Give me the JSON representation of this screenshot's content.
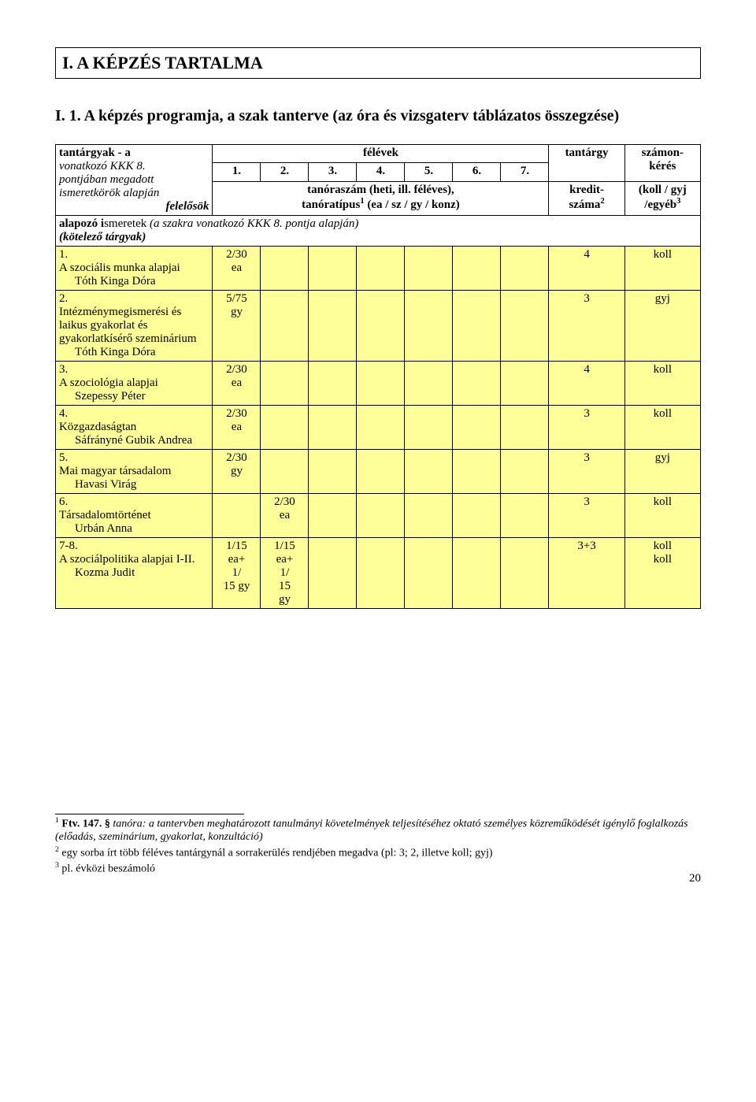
{
  "section_title": "I. A KÉPZÉS TARTALMA",
  "subsection_title": "I. 1. A képzés programja, a szak tanterve (az óra és vizsgaterv táblázatos összegzése)",
  "header": {
    "subjects_label_line1": "tantárgyak - a",
    "subjects_label_line2": "vonatkozó KKK 8.",
    "subjects_label_line3": "pontjában megadott",
    "subjects_label_line4": "ismeretkörök alapján",
    "subjects_label_line5": "felelősök",
    "semesters_label": "félévek",
    "sem_cols": [
      "1.",
      "2.",
      "3.",
      "4.",
      "5.",
      "6.",
      "7."
    ],
    "tanoraszam_line": "tanóraszám (heti, ill. féléves),",
    "tanoratipus_line": "tanóratípus",
    "tanoratipus_sup": "1",
    "tanoratipus_tail": " (ea / sz / gy / konz)",
    "tantargy_label": "tantárgy",
    "kredit_line1": "kredit-",
    "kredit_line2": "száma",
    "kredit_sup": "2",
    "szamon_line1": "számon-",
    "szamon_line2": "kérés",
    "koll_line1": "(koll / gyj",
    "koll_line2": "/egyéb",
    "koll_sup": "3"
  },
  "group_header_line1": "alapozó ismeretek (a szakra vonatkozó KKK 8. pontja alapján)",
  "group_header_line2": "(kötelező tárgyak)",
  "rows": [
    {
      "num": "1.",
      "title": "A szociális munka alapjai",
      "person": "Tóth Kinga Dóra",
      "cells": [
        "2/30\nea",
        "",
        "",
        "",
        "",
        "",
        ""
      ],
      "credit": "4",
      "exam": "koll"
    },
    {
      "num": "2.",
      "title": "Intézménymegismerési és laikus gyakorlat és gyakorlatkísérő szeminárium",
      "person": "Tóth Kinga Dóra",
      "cells": [
        "5/75\ngy",
        "",
        "",
        "",
        "",
        "",
        ""
      ],
      "credit": "3",
      "exam": "gyj"
    },
    {
      "num": "3.",
      "title": "A szociológia alapjai",
      "person": "Szepessy Péter",
      "cells": [
        "2/30\nea",
        "",
        "",
        "",
        "",
        "",
        ""
      ],
      "credit": "4",
      "exam": "koll"
    },
    {
      "num": "4.",
      "title": "Közgazdaságtan",
      "person": "Sáfrányné Gubik Andrea",
      "cells": [
        "2/30\nea",
        "",
        "",
        "",
        "",
        "",
        ""
      ],
      "credit": "3",
      "exam": "koll"
    },
    {
      "num": "5.",
      "title": "Mai magyar társadalom",
      "person": "Havasi Virág",
      "cells": [
        "2/30\ngy",
        "",
        "",
        "",
        "",
        "",
        ""
      ],
      "credit": "3",
      "exam": "gyj"
    },
    {
      "num": "6.",
      "title": "Társadalomtörténet",
      "person": "Urbán Anna",
      "cells": [
        "",
        "2/30\nea",
        "",
        "",
        "",
        "",
        ""
      ],
      "credit": "3",
      "exam": "koll"
    },
    {
      "num": "7-8.",
      "title": "A szociálpolitika alapjai I-II.",
      "person": "Kozma Judit",
      "cells": [
        "1/15\nea+\n1/\n15 gy",
        "1/15\nea+\n1/\n15\ngy",
        "",
        "",
        "",
        "",
        ""
      ],
      "credit": "3+3",
      "exam": "koll\nkoll"
    }
  ],
  "footnotes": {
    "f1_lead": "1",
    "f1_bold": " Ftv. 147. §",
    "f1_italic": " tanóra: a tantervben meghatározott tanulmányi követelmények teljesítéséhez oktató személyes közreműködését igénylő foglalkozás (előadás, szeminárium, gyakorlat, konzultáció)",
    "f2_lead": "2",
    "f2_text": " egy sorba írt több féléves tantárgynál a sorrakerülés rendjében megadva (pl: 3; 2, illetve koll; gyj)",
    "f3_lead": "3",
    "f3_text": " pl. évközi beszámoló"
  },
  "page_number": "20",
  "colors": {
    "row_bg": "#ffff99",
    "page_bg": "#ffffff",
    "border": "#000000"
  }
}
